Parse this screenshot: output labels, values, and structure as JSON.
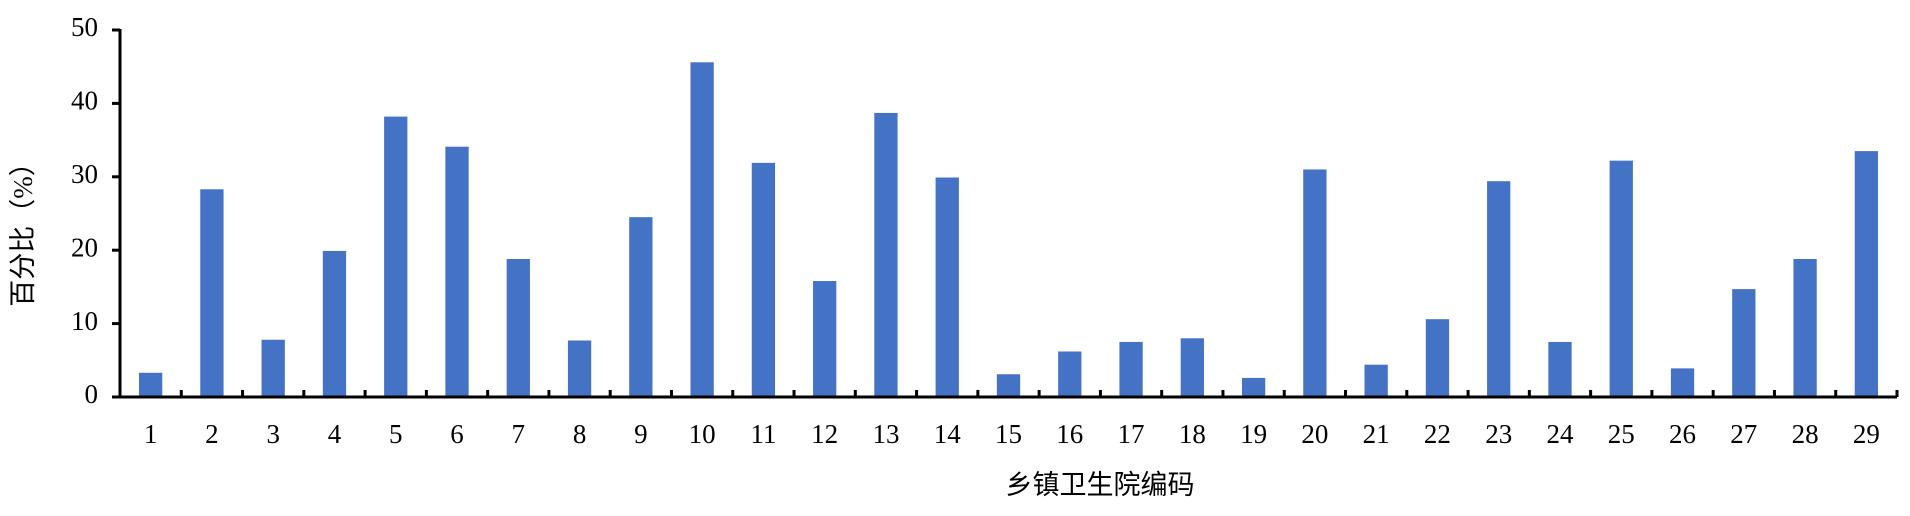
{
  "chart_data": {
    "type": "bar",
    "x_label": "乡镇卫生院编码",
    "y_label": "百分比（%）",
    "categories": [
      "1",
      "2",
      "3",
      "4",
      "5",
      "6",
      "7",
      "8",
      "9",
      "10",
      "11",
      "12",
      "13",
      "14",
      "15",
      "16",
      "17",
      "18",
      "19",
      "20",
      "21",
      "22",
      "23",
      "24",
      "25",
      "26",
      "27",
      "28",
      "29"
    ],
    "values": [
      3.3,
      28.3,
      7.8,
      19.9,
      38.2,
      34.1,
      18.8,
      7.7,
      24.5,
      45.6,
      31.9,
      15.8,
      38.7,
      29.9,
      3.1,
      6.2,
      7.5,
      8.0,
      2.6,
      31.0,
      4.4,
      10.6,
      29.4,
      7.5,
      32.2,
      3.9,
      14.7,
      18.8,
      33.5
    ],
    "color": "#4472c4",
    "ylim": [
      0,
      50
    ],
    "yticks": [
      0,
      10,
      20,
      30,
      40,
      50
    ],
    "grid": false
  }
}
